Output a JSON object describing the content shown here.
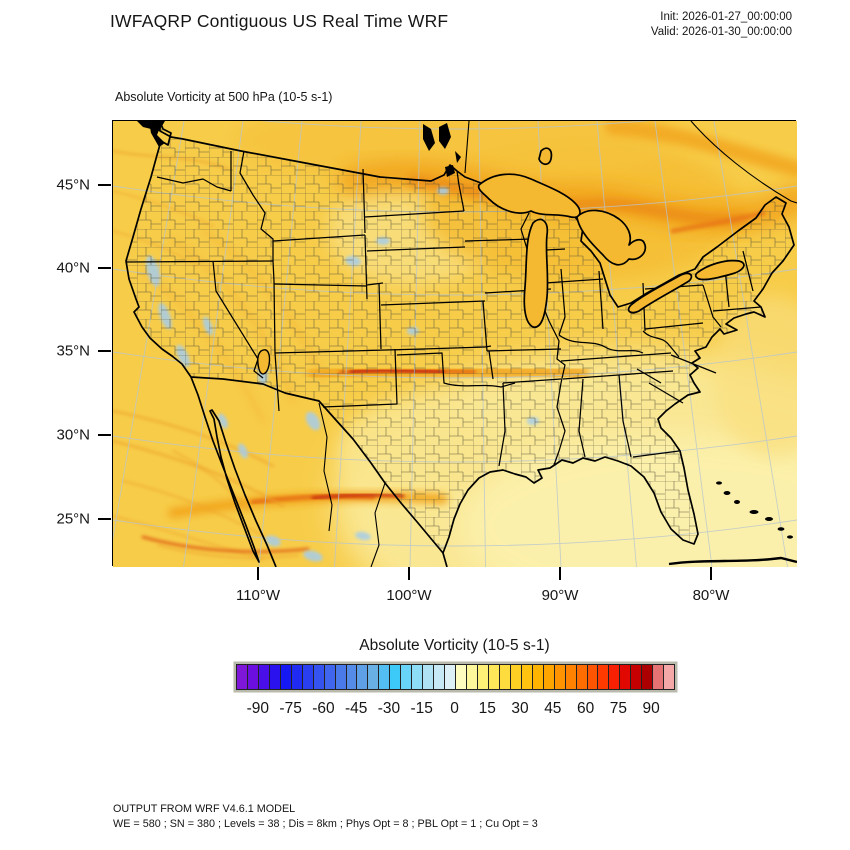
{
  "header": {
    "title": "IWFAQRP Contiguous US Real Time WRF",
    "init_line": "Init: 2026-01-27_00:00:00",
    "valid_line": "Valid: 2026-01-30_00:00:00"
  },
  "plot": {
    "subtitle": "Absolute Vorticity at 500 hPa   (10-5 s-1)",
    "y_axis": {
      "labels": [
        "45°N",
        "40°N",
        "35°N",
        "30°N",
        "25°N"
      ]
    },
    "x_axis": {
      "labels": [
        "110°W",
        "100°W",
        "90°W",
        "80°W"
      ]
    }
  },
  "colorbar": {
    "title": "Absolute Vorticity  (10-5 s-1)",
    "tick_labels": [
      "-90",
      "-75",
      "-60",
      "-45",
      "-30",
      "-15",
      "0",
      "15",
      "30",
      "45",
      "60",
      "75",
      "90"
    ],
    "colors": [
      "#7F17D8",
      "#6A0FE0",
      "#4A0FE8",
      "#2A12EE",
      "#1518F2",
      "#1F2BF2",
      "#2A3FF0",
      "#3553EE",
      "#3F66EC",
      "#4A79EA",
      "#548CE8",
      "#5F9FE6",
      "#69B1E4",
      "#52BEF2",
      "#3DCAF8",
      "#67D4F8",
      "#8EDDF6",
      "#AFE3F4",
      "#C7E9F5",
      "#DDEFF7",
      "#FFFCC0",
      "#FFF79B",
      "#FFF078",
      "#FFE759",
      "#FFDC3D",
      "#FFD024",
      "#FFC310",
      "#FFB400",
      "#FFA500",
      "#FF9400",
      "#FF8200",
      "#FF6D00",
      "#FF5500",
      "#FF3A00",
      "#F72000",
      "#E00800",
      "#C60000",
      "#AC0000",
      "#E57373",
      "#F5A8A8"
    ]
  },
  "footer": {
    "line1": "OUTPUT FROM WRF V4.6.1 MODEL",
    "line2": "WE = 580 ; SN = 380 ; Levels = 38 ; Dis = 8km ; Phys Opt = 8 ; PBL Opt = 1 ; Cu Opt = 3"
  },
  "chart_data": {
    "type": "heatmap",
    "title": "IWFAQRP Contiguous US Real Time WRF",
    "subtitle": "Absolute Vorticity at 500 hPa (10-5 s-1)",
    "variable": "Absolute Vorticity",
    "level": "500 hPa",
    "units": "10-5 s-1",
    "init_time": "2026-01-27_00:00:00",
    "valid_time": "2026-01-30_00:00:00",
    "colorbar_tick_values": [
      -90,
      -75,
      -60,
      -45,
      -30,
      -15,
      0,
      15,
      30,
      45,
      60,
      75,
      90
    ],
    "colorbar_range": [
      -100,
      100
    ],
    "contour_interval": 5,
    "x_axis_ticks": [
      "110°W",
      "100°W",
      "90°W",
      "80°W"
    ],
    "y_axis_ticks": [
      "45°N",
      "40°N",
      "35°N",
      "30°N",
      "25°N"
    ],
    "base_field_value_range": [
      10,
      35
    ],
    "field_summary": "Positive absolute vorticity (gold, ~10-35) over most of the CONUS domain; strong east-west maximum streak (~60-90, orange-red core) along the Kansas/Oklahoma border near 37N; second orange-red streak over northwest Mexico near 30N; broad enhanced band (~30-50) arcing across the Great Lakes into New England and southeast Canada; scattered weak negative patches (light blue) along the West Coast, interior West and northern Mexico; weakest values (~0-10, pale yellow) over the Southeast US, Gulf of Mexico and western Atlantic."
  }
}
